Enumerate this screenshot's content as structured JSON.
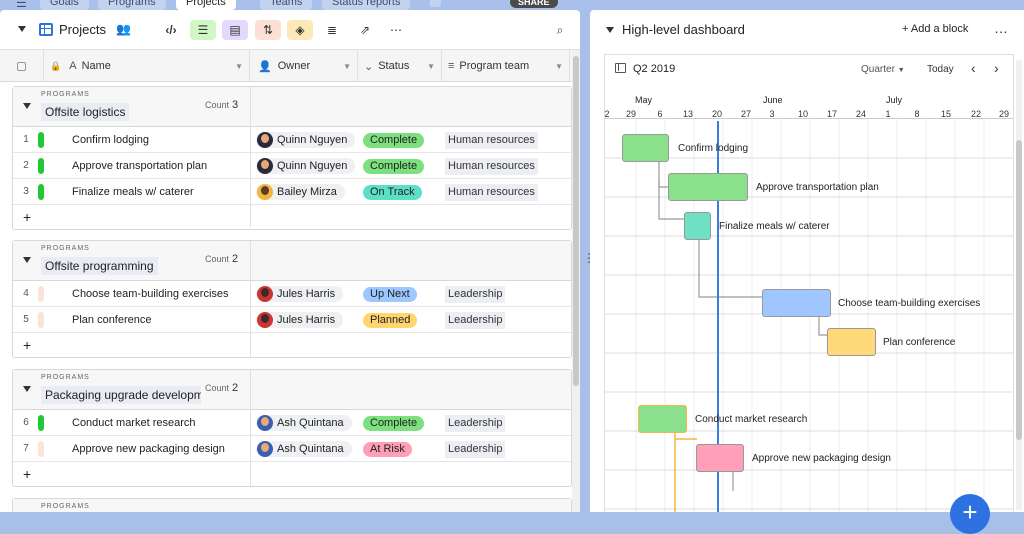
{
  "top_tabs": [
    "Goals",
    "Programs",
    "Projects",
    "Teams",
    "Status reports"
  ],
  "share_label": "SHARE",
  "left": {
    "view_name": "Projects",
    "columns": [
      "Name",
      "Owner",
      "Status",
      "Program team"
    ],
    "groups": [
      {
        "label": "PROGRAMS",
        "title": "Offsite logistics",
        "count_label": "Count",
        "count": "3",
        "rows": [
          {
            "num": "1",
            "name": "Confirm lodging",
            "owner": "Quinn Nguyen",
            "status": "Complete",
            "team": "Human resources",
            "clip": "C",
            "bar_color": "#20c933",
            "status_color": "#7de07e"
          },
          {
            "num": "2",
            "name": "Approve transportation plan",
            "owner": "Quinn Nguyen",
            "status": "Complete",
            "team": "Human resources",
            "clip": "C",
            "bar_color": "#20c933",
            "status_color": "#7de07e"
          },
          {
            "num": "3",
            "name": "Finalize meals w/ caterer",
            "owner": "Bailey Mirza",
            "status": "On Track",
            "team": "Human resources",
            "clip": "C",
            "bar_color": "#20c933",
            "status_color": "#5ddfc6"
          }
        ]
      },
      {
        "label": "PROGRAMS",
        "title": "Offsite programming",
        "count_label": "Count",
        "count": "2",
        "rows": [
          {
            "num": "4",
            "name": "Choose team-building exercises",
            "owner": "Jules Harris",
            "status": "Up Next",
            "team": "Leadership",
            "clip": "C",
            "bar_color": "#fde2d8",
            "status_color": "#9cc7ff"
          },
          {
            "num": "5",
            "name": "Plan conference",
            "owner": "Jules Harris",
            "status": "Planned",
            "team": "Leadership",
            "clip": "C",
            "bar_color": "#fde2d8",
            "status_color": "#ffd66e"
          }
        ]
      },
      {
        "label": "PROGRAMS",
        "title": "Packaging upgrade developm",
        "count_label": "Count",
        "count": "2",
        "rows": [
          {
            "num": "6",
            "name": "Conduct market research",
            "owner": "Ash Quintana",
            "status": "Complete",
            "team": "Leadership",
            "clip": "B",
            "bar_color": "#20c933",
            "status_color": "#7de07e"
          },
          {
            "num": "7",
            "name": "Approve new packaging design",
            "owner": "Ash Quintana",
            "status": "At Risk",
            "team": "Leadership",
            "clip": "B",
            "bar_color": "#fde2d8",
            "status_color": "#ff9eb7"
          }
        ]
      },
      {
        "label": "PROGRAMS"
      }
    ],
    "add_symbol": "+"
  },
  "right": {
    "title": "High-level dashboard",
    "add_block": "+ Add a block",
    "more": "…",
    "range_label": "Q2 2019",
    "zoom": "Quarter",
    "today": "Today",
    "months": [
      "May",
      "June",
      "July"
    ],
    "days": [
      "2",
      "29",
      "6",
      "13",
      "20",
      "27",
      "3",
      "10",
      "17",
      "24",
      "1",
      "8",
      "15",
      "22",
      "29"
    ],
    "bars": [
      {
        "label": "Confirm lodging",
        "color": "#8be08b"
      },
      {
        "label": "Approve transportation plan",
        "color": "#8be08b"
      },
      {
        "label": "Finalize meals w/ caterer",
        "color": "#6fe0c4"
      },
      {
        "label": "Choose team-building exercises",
        "color": "#9fc6ff"
      },
      {
        "label": "Plan conference",
        "color": "#ffd97a"
      },
      {
        "label": "Conduct market research",
        "color": "#8be08b"
      },
      {
        "label": "Approve new packaging design",
        "color": "#ff9fb8"
      }
    ]
  }
}
